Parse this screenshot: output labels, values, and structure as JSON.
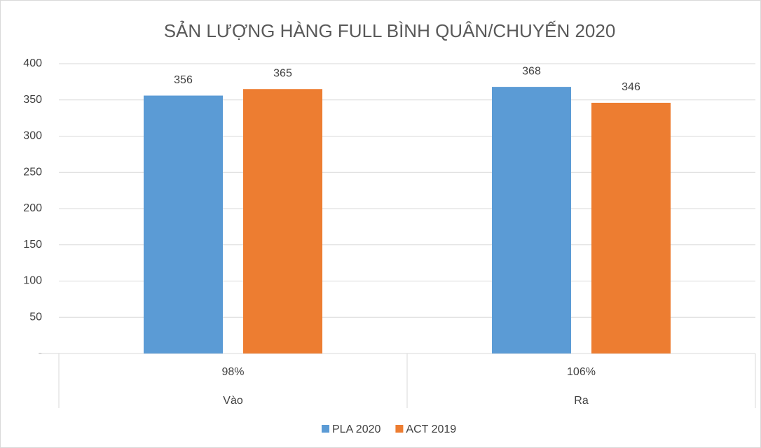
{
  "chart_data": {
    "type": "bar",
    "title": "SẢN LƯỢNG HÀNG FULL BÌNH QUÂN/CHUYẾN  2020",
    "categories": [
      "Vào",
      "Ra"
    ],
    "category_groups": [
      "98%",
      "106%"
    ],
    "series": [
      {
        "name": "PLA 2020",
        "color": "#5b9bd5",
        "values": [
          356,
          368
        ]
      },
      {
        "name": "ACT 2019",
        "color": "#ed7d31",
        "values": [
          365,
          346
        ]
      }
    ],
    "ylim": [
      0,
      400
    ],
    "yticks": [
      {
        "value": 0,
        "label": "-"
      },
      50,
      100,
      150,
      200,
      250,
      300,
      350,
      400
    ],
    "grid": true,
    "legend": "bottom"
  }
}
